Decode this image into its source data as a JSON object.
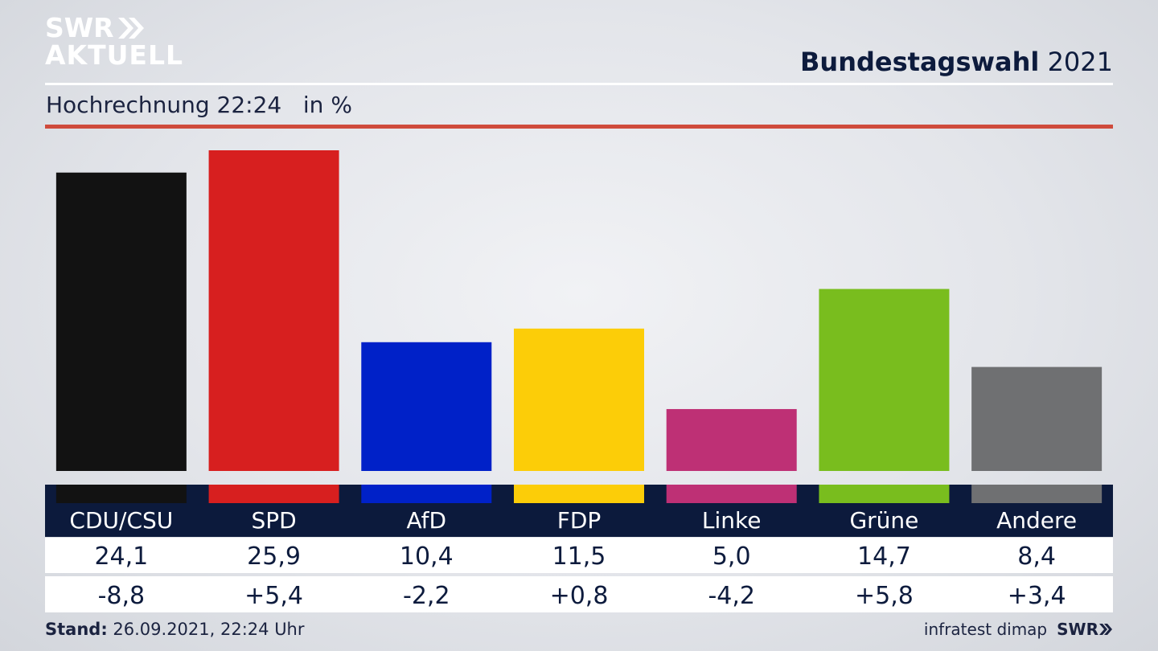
{
  "logo": {
    "line1": "SWR",
    "line2": "AKTUELL"
  },
  "header": {
    "title_bold": "Bundestagswahl",
    "title_year": "2021"
  },
  "subtitle": {
    "label": "Hochrechnung 22:24",
    "unit": "in %"
  },
  "footer": {
    "stand_label": "Stand:",
    "stand_value": "26.09.2021, 22:24 Uhr",
    "source": "infratest dimap",
    "brand": "SWR"
  },
  "colors": {
    "header_bar": "#0c1a3c",
    "accent_rule": "#cf4b3c"
  },
  "chart_data": {
    "type": "bar",
    "title": "Bundestagswahl 2021",
    "subtitle": "Hochrechnung 22:24 in %",
    "ylim": [
      0,
      27
    ],
    "categories": [
      "CDU/CSU",
      "SPD",
      "AfD",
      "FDP",
      "Linke",
      "Grüne",
      "Andere"
    ],
    "values": [
      24.1,
      25.9,
      10.4,
      11.5,
      5.0,
      14.7,
      8.4
    ],
    "value_labels": [
      "24,1",
      "25,9",
      "10,4",
      "11,5",
      "5,0",
      "14,7",
      "8,4"
    ],
    "change_labels": [
      "-8,8",
      "+5,4",
      "-2,2",
      "+0,8",
      "-4,2",
      "+5,8",
      "+3,4"
    ],
    "changes": [
      -8.8,
      5.4,
      -2.2,
      0.8,
      -4.2,
      5.8,
      3.4
    ],
    "colors": [
      "#121212",
      "#d71f1f",
      "#0021c8",
      "#fccd08",
      "#be3075",
      "#79bd1e",
      "#6f7072"
    ]
  }
}
